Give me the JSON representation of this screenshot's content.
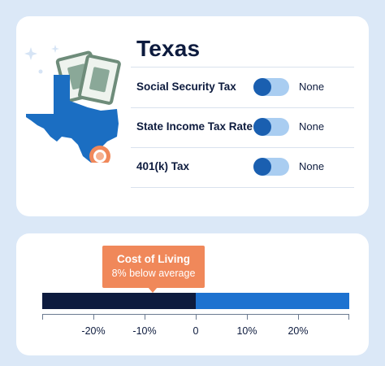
{
  "state": {
    "name": "Texas"
  },
  "taxes": [
    {
      "label": "Social Security Tax",
      "value": "None",
      "toggle_on": false
    },
    {
      "label": "State Income Tax Rate",
      "value": "None",
      "toggle_on": false
    },
    {
      "label": "401(k) Tax",
      "value": "None",
      "toggle_on": false
    }
  ],
  "cost_of_living": {
    "title": "Cost of Living",
    "subtitle": "8% below average",
    "value_percent": -8,
    "axis_range": [
      -30,
      30
    ],
    "ticks": [
      {
        "value": -20,
        "label": "-20%"
      },
      {
        "value": -10,
        "label": "-10%"
      },
      {
        "value": 0,
        "label": "0"
      },
      {
        "value": 10,
        "label": "10%"
      },
      {
        "value": 20,
        "label": "20%"
      }
    ]
  },
  "colors": {
    "background": "#dbe8f7",
    "navy": "#0d1b3e",
    "blue": "#1d72d0",
    "state_blue": "#1b6ec2",
    "orange": "#f0885a",
    "toggle_track": "#a9cdf1"
  },
  "icons": [
    "texas-map-icon",
    "money-bills-icon",
    "location-target-icon",
    "sparkle-icon"
  ]
}
